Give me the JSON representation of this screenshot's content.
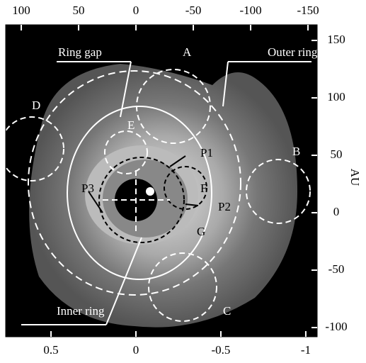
{
  "chart_data": {
    "type": "image",
    "xlim": [
      113.6,
      -158
    ],
    "xticks": [
      100,
      50,
      0,
      -50,
      -100,
      -150
    ],
    "x2lim": [
      0.767,
      -1.067
    ],
    "x2ticks": [
      0.5,
      0,
      -0.5,
      -1
    ],
    "ylim": [
      -108,
      163.6
    ],
    "yticks": [
      150,
      100,
      50,
      0,
      -50,
      -100
    ],
    "ylabel": "AU",
    "annotations": [
      "Ring gap",
      "Outer ring",
      "Inner ring",
      "A",
      "B",
      "C",
      "D",
      "E",
      "F",
      "G",
      "P1",
      "P2",
      "P3"
    ]
  }
}
